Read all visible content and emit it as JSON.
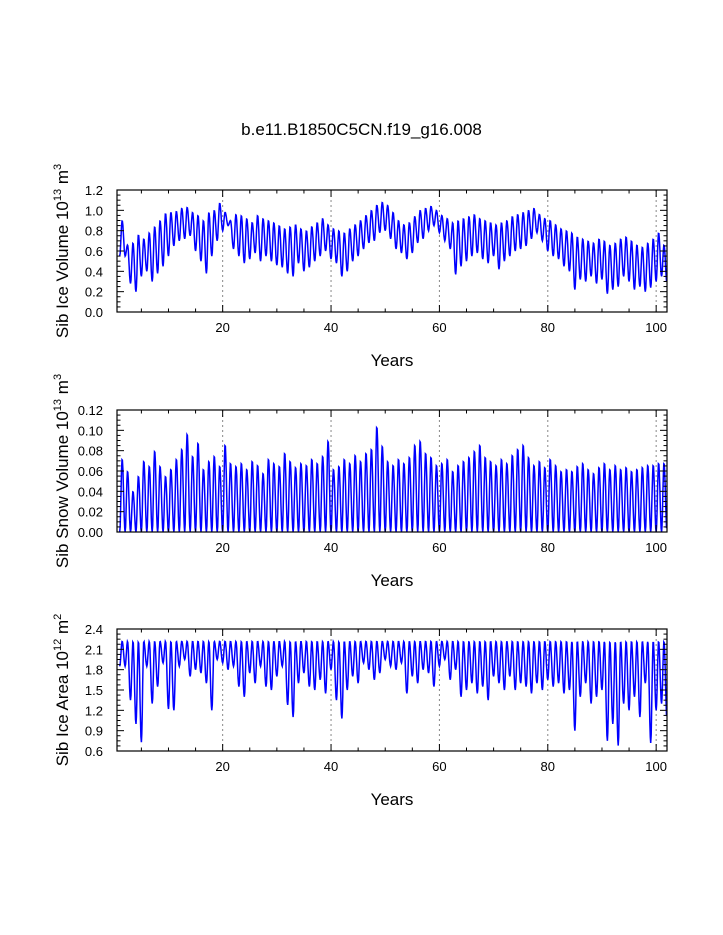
{
  "title": "b.e11.B1850C5CN.f19_g16.008",
  "colors": {
    "series": "#0000ff",
    "frame": "#000000",
    "refline": "#888888"
  },
  "chart_data": [
    {
      "type": "line",
      "name": "sib-ice-volume",
      "xlabel": "Years",
      "ylabel_main": "Sib Ice Volume 10",
      "ylabel_exp": "13",
      "ylabel_unit": " m",
      "ylabel_unit_exp": "3",
      "xlim": [
        0.5,
        102
      ],
      "ylim": [
        0.0,
        1.2
      ],
      "xticks": [
        20,
        40,
        60,
        80,
        100
      ],
      "xtick_labels": [
        "20",
        "40",
        "60",
        "80",
        "100"
      ],
      "yticks": [
        0.0,
        0.2,
        0.4,
        0.6,
        0.8,
        1.0,
        1.2
      ],
      "ytick_labels": [
        "0.0",
        "0.2",
        "0.4",
        "0.6",
        "0.8",
        "1.0",
        "1.2"
      ],
      "reflines_x": [
        20,
        40,
        60,
        80,
        100
      ],
      "series": [
        {
          "name": "Sib Ice Volume",
          "annual_max": [
            0.9,
            0.66,
            0.68,
            0.76,
            0.72,
            0.78,
            0.84,
            0.9,
            0.97,
            0.98,
            0.99,
            1.02,
            1.03,
            0.98,
            0.95,
            0.9,
            0.98,
            1.0,
            1.07,
            0.98,
            0.9,
            0.96,
            0.95,
            0.92,
            0.88,
            0.95,
            0.92,
            0.9,
            0.88,
            0.85,
            0.82,
            0.84,
            0.86,
            0.82,
            0.8,
            0.84,
            0.88,
            0.92,
            0.86,
            0.82,
            0.8,
            0.78,
            0.82,
            0.86,
            0.9,
            0.95,
            1.0,
            1.05,
            1.08,
            1.05,
            0.98,
            0.9,
            0.86,
            0.88,
            0.94,
            1.0,
            1.02,
            1.04,
            1.0,
            0.95,
            0.92,
            0.88,
            0.9,
            0.92,
            0.94,
            0.96,
            0.92,
            0.9,
            0.88,
            0.86,
            0.88,
            0.9,
            0.94,
            0.96,
            0.98,
            1.0,
            1.02,
            0.96,
            0.92,
            0.9,
            0.86,
            0.82,
            0.8,
            0.78,
            0.74,
            0.72,
            0.7,
            0.68,
            0.72,
            0.7,
            0.66,
            0.68,
            0.72,
            0.74,
            0.7,
            0.66,
            0.64,
            0.68,
            0.72,
            0.78,
            0.66
          ],
          "annual_min": [
            0.55,
            0.28,
            0.2,
            0.35,
            0.4,
            0.3,
            0.38,
            0.45,
            0.55,
            0.65,
            0.7,
            0.72,
            0.75,
            0.6,
            0.5,
            0.38,
            0.55,
            0.7,
            0.8,
            0.85,
            0.62,
            0.55,
            0.48,
            0.52,
            0.58,
            0.5,
            0.55,
            0.5,
            0.46,
            0.44,
            0.38,
            0.35,
            0.48,
            0.4,
            0.44,
            0.5,
            0.55,
            0.6,
            0.52,
            0.48,
            0.35,
            0.4,
            0.5,
            0.55,
            0.62,
            0.68,
            0.7,
            0.78,
            0.8,
            0.72,
            0.62,
            0.58,
            0.52,
            0.58,
            0.68,
            0.72,
            0.8,
            0.85,
            0.78,
            0.7,
            0.62,
            0.37,
            0.45,
            0.5,
            0.55,
            0.58,
            0.52,
            0.48,
            0.55,
            0.42,
            0.5,
            0.55,
            0.6,
            0.62,
            0.65,
            0.72,
            0.78,
            0.7,
            0.6,
            0.55,
            0.52,
            0.45,
            0.4,
            0.22,
            0.32,
            0.3,
            0.35,
            0.28,
            0.32,
            0.18,
            0.22,
            0.25,
            0.35,
            0.3,
            0.22,
            0.25,
            0.2,
            0.24,
            0.3,
            0.35,
            0.28
          ]
        }
      ]
    },
    {
      "type": "line",
      "name": "sib-snow-volume",
      "xlabel": "Years",
      "ylabel_main": "Sib Snow Volume 10",
      "ylabel_exp": "13",
      "ylabel_unit": " m",
      "ylabel_unit_exp": "3",
      "xlim": [
        0.5,
        102
      ],
      "ylim": [
        0.0,
        0.12
      ],
      "xticks": [
        20,
        40,
        60,
        80,
        100
      ],
      "xtick_labels": [
        "20",
        "40",
        "60",
        "80",
        "100"
      ],
      "yticks": [
        0.0,
        0.02,
        0.04,
        0.06,
        0.08,
        0.1,
        0.12
      ],
      "ytick_labels": [
        "0.00",
        "0.02",
        "0.04",
        "0.06",
        "0.08",
        "0.10",
        "0.12"
      ],
      "reflines_x": [
        20,
        40,
        60,
        80,
        100
      ],
      "series": [
        {
          "name": "Sib Snow Volume",
          "annual_max": [
            0.072,
            0.06,
            0.04,
            0.055,
            0.07,
            0.065,
            0.08,
            0.065,
            0.055,
            0.062,
            0.072,
            0.082,
            0.097,
            0.075,
            0.088,
            0.062,
            0.07,
            0.075,
            0.065,
            0.086,
            0.068,
            0.065,
            0.068,
            0.062,
            0.07,
            0.066,
            0.058,
            0.072,
            0.068,
            0.065,
            0.078,
            0.07,
            0.064,
            0.068,
            0.066,
            0.072,
            0.068,
            0.075,
            0.09,
            0.062,
            0.065,
            0.072,
            0.068,
            0.076,
            0.07,
            0.078,
            0.082,
            0.104,
            0.085,
            0.07,
            0.066,
            0.072,
            0.068,
            0.074,
            0.086,
            0.09,
            0.078,
            0.074,
            0.066,
            0.068,
            0.072,
            0.06,
            0.066,
            0.07,
            0.074,
            0.08,
            0.086,
            0.074,
            0.07,
            0.066,
            0.072,
            0.068,
            0.076,
            0.082,
            0.086,
            0.074,
            0.066,
            0.07,
            0.064,
            0.072,
            0.066,
            0.06,
            0.062,
            0.06,
            0.065,
            0.068,
            0.062,
            0.058,
            0.064,
            0.068,
            0.062,
            0.066,
            0.062,
            0.064,
            0.06,
            0.062,
            0.064,
            0.066,
            0.066,
            0.068,
            0.068
          ],
          "annual_min": [
            0.0,
            0.0,
            0.0,
            0.0,
            0.0,
            0.0,
            0.0,
            0.0,
            0.0,
            0.0,
            0.0,
            0.0,
            0.0,
            0.0,
            0.0,
            0.0,
            0.0,
            0.0,
            0.0,
            0.0,
            0.0,
            0.0,
            0.0,
            0.0,
            0.0,
            0.0,
            0.0,
            0.0,
            0.0,
            0.0,
            0.0,
            0.0,
            0.0,
            0.0,
            0.0,
            0.0,
            0.0,
            0.0,
            0.0,
            0.0,
            0.0,
            0.0,
            0.0,
            0.0,
            0.0,
            0.0,
            0.0,
            0.0,
            0.0,
            0.0,
            0.0,
            0.0,
            0.0,
            0.0,
            0.0,
            0.0,
            0.0,
            0.0,
            0.0,
            0.0,
            0.0,
            0.0,
            0.0,
            0.0,
            0.0,
            0.0,
            0.0,
            0.0,
            0.0,
            0.0,
            0.0,
            0.0,
            0.0,
            0.0,
            0.0,
            0.0,
            0.0,
            0.0,
            0.0,
            0.0,
            0.0,
            0.0,
            0.0,
            0.0,
            0.0,
            0.0,
            0.0,
            0.0,
            0.0,
            0.0,
            0.0,
            0.0,
            0.0,
            0.0,
            0.0,
            0.0,
            0.0,
            0.0,
            0.0,
            0.0,
            0.0
          ]
        }
      ]
    },
    {
      "type": "line",
      "name": "sib-ice-area",
      "xlabel": "Years",
      "ylabel_main": "Sib Ice Area 10",
      "ylabel_exp": "12",
      "ylabel_unit": " m",
      "ylabel_unit_exp": "2",
      "xlim": [
        0.5,
        102
      ],
      "ylim": [
        0.6,
        2.4
      ],
      "xticks": [
        20,
        40,
        60,
        80,
        100
      ],
      "xtick_labels": [
        "20",
        "40",
        "60",
        "80",
        "100"
      ],
      "yticks": [
        0.6,
        0.9,
        1.2,
        1.5,
        1.8,
        2.1,
        2.4
      ],
      "ytick_labels": [
        "0.6",
        "0.9",
        "1.2",
        "1.5",
        "1.8",
        "2.1",
        "2.4"
      ],
      "reflines_x": [
        20,
        40,
        60,
        80,
        100
      ],
      "series": [
        {
          "name": "Sib Ice Area",
          "annual_max": [
            2.22,
            2.22,
            2.22,
            2.22,
            2.22,
            2.22,
            2.22,
            2.22,
            2.22,
            2.22,
            2.22,
            2.22,
            2.22,
            2.22,
            2.22,
            2.22,
            2.22,
            2.22,
            2.22,
            2.22,
            2.22,
            2.22,
            2.22,
            2.22,
            2.22,
            2.22,
            2.22,
            2.22,
            2.22,
            2.22,
            2.22,
            2.22,
            2.22,
            2.22,
            2.22,
            2.22,
            2.22,
            2.22,
            2.22,
            2.22,
            2.22,
            2.22,
            2.22,
            2.22,
            2.22,
            2.22,
            2.22,
            2.22,
            2.22,
            2.22,
            2.22,
            2.22,
            2.22,
            2.22,
            2.22,
            2.22,
            2.22,
            2.22,
            2.22,
            2.22,
            2.22,
            2.22,
            2.22,
            2.22,
            2.22,
            2.22,
            2.22,
            2.22,
            2.22,
            2.22,
            2.22,
            2.22,
            2.22,
            2.22,
            2.22,
            2.22,
            2.22,
            2.22,
            2.22,
            2.22,
            2.22,
            2.22,
            2.22,
            2.22,
            2.22,
            2.22,
            2.22,
            2.22,
            2.22,
            2.22,
            2.22,
            2.22,
            2.22,
            2.22,
            2.22,
            2.22,
            2.22,
            2.22,
            2.22,
            2.22,
            2.22
          ],
          "annual_min": [
            1.85,
            1.35,
            1.0,
            0.73,
            1.85,
            1.3,
            1.55,
            1.9,
            1.22,
            1.2,
            1.85,
            1.95,
            1.7,
            1.8,
            1.75,
            1.6,
            1.2,
            1.95,
            1.9,
            1.8,
            1.85,
            1.55,
            1.4,
            1.75,
            1.6,
            1.85,
            1.55,
            1.5,
            1.7,
            1.85,
            1.28,
            1.1,
            1.6,
            1.75,
            1.55,
            1.5,
            1.65,
            1.45,
            1.8,
            1.35,
            1.08,
            1.5,
            1.7,
            1.6,
            1.9,
            1.8,
            1.65,
            1.75,
            1.95,
            1.85,
            1.8,
            1.9,
            1.45,
            1.7,
            1.6,
            1.8,
            1.75,
            1.55,
            1.85,
            1.95,
            1.65,
            1.8,
            1.4,
            1.5,
            1.6,
            1.45,
            1.55,
            1.35,
            1.7,
            1.6,
            1.5,
            1.7,
            1.5,
            1.6,
            1.55,
            1.45,
            1.6,
            1.5,
            1.65,
            1.55,
            1.6,
            1.45,
            1.5,
            0.9,
            1.4,
            1.6,
            1.3,
            1.4,
            1.5,
            0.75,
            1.0,
            0.68,
            1.3,
            1.2,
            1.4,
            1.1,
            1.6,
            0.72,
            1.2,
            1.3,
            1.05
          ]
        }
      ]
    }
  ]
}
